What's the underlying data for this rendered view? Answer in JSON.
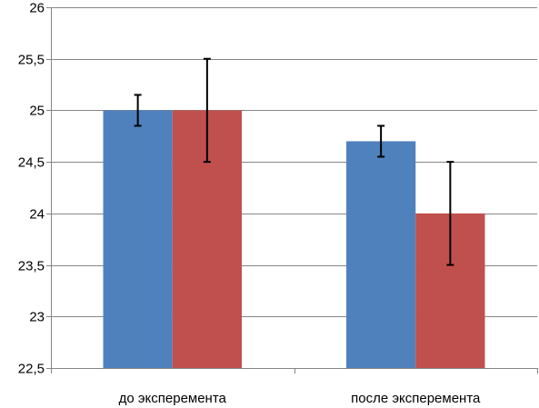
{
  "chart_data": {
    "type": "bar",
    "categories": [
      "до эксперемента",
      "после эксперемента"
    ],
    "series": [
      {
        "values": [
          25.0,
          24.7
        ],
        "errors": [
          0.15,
          0.15
        ],
        "color": "#4F81BD"
      },
      {
        "values": [
          25.0,
          24.0
        ],
        "errors": [
          0.5,
          0.5
        ],
        "color": "#C0504D"
      }
    ],
    "ylim": [
      22.5,
      26
    ],
    "yticks": [
      22.5,
      23,
      23.5,
      24,
      24.5,
      25,
      25.5,
      26
    ],
    "ytick_labels": [
      "22,5",
      "23",
      "23,5",
      "24",
      "24,5",
      "25",
      "25,5",
      "26"
    ],
    "grid": true,
    "legend": "none",
    "title": "",
    "xlabel": "",
    "ylabel": ""
  }
}
